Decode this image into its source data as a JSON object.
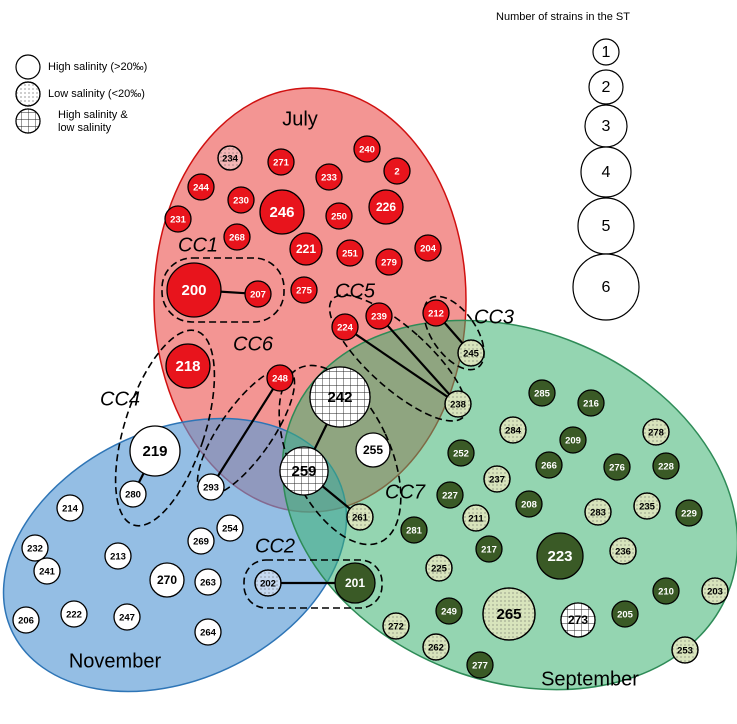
{
  "months": [
    "July",
    "November",
    "September"
  ],
  "clusters": [
    "CC1",
    "CC2",
    "CC3",
    "CC4",
    "CC5",
    "CC6",
    "CC7"
  ],
  "salinity_legend": [
    {
      "lines": [
        "High salinity (>20‰)"
      ]
    },
    {
      "lines": [
        "Low salinity (<20‰)"
      ]
    },
    {
      "lines": [
        "High salinity &",
        "low salinity"
      ]
    }
  ],
  "size_legend": {
    "title": "Number of strains in the ST",
    "sizes": [
      "1",
      "2",
      "3",
      "4",
      "5",
      "6"
    ]
  },
  "nodes": [
    "234",
    "271",
    "240",
    "233",
    "2",
    "244",
    "230",
    "246",
    "226",
    "231",
    "250",
    "268",
    "221",
    "251",
    "279",
    "204",
    "200",
    "207",
    "275",
    "224",
    "239",
    "212",
    "218",
    "248",
    "242",
    "259",
    "255",
    "245",
    "238",
    "261",
    "219",
    "280",
    "293",
    "285",
    "216",
    "252",
    "209",
    "266",
    "276",
    "228",
    "227",
    "208",
    "229",
    "281",
    "217",
    "223",
    "210",
    "249",
    "205",
    "201",
    "277",
    "284",
    "278",
    "237",
    "211",
    "283",
    "235",
    "225",
    "236",
    "203",
    "272",
    "265",
    "273",
    "262",
    "253",
    "214",
    "232",
    "241",
    "213",
    "269",
    "254",
    "270",
    "263",
    "206",
    "222",
    "247",
    "264",
    "202"
  ]
}
